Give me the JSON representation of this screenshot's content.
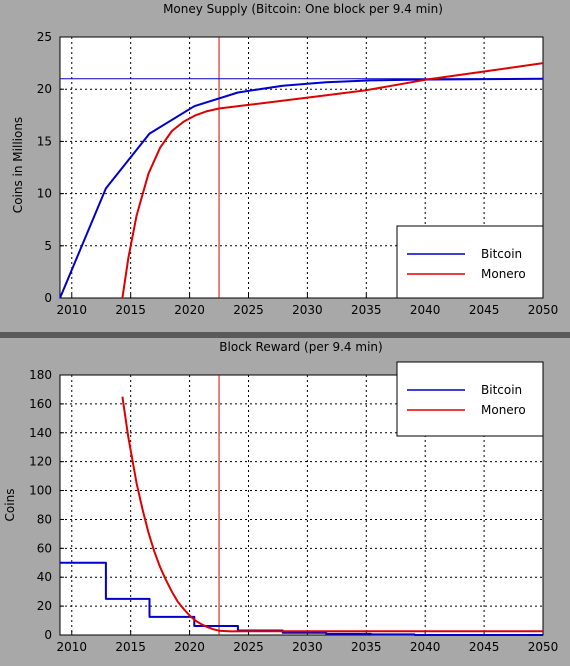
{
  "chart_data": [
    {
      "type": "line",
      "title": "Money Supply (Bitcoin: One block per 9.4 min)",
      "xlabel": "",
      "ylabel": "Coins in Millions",
      "xlim": [
        2009,
        2050
      ],
      "ylim": [
        0,
        25
      ],
      "x_ticks": [
        2010,
        2015,
        2020,
        2025,
        2030,
        2035,
        2040,
        2045,
        2050
      ],
      "y_ticks": [
        0,
        5,
        10,
        15,
        20,
        25
      ],
      "grid": true,
      "legend_position": "bottom-right",
      "vertical_marker_x": 2022.5,
      "horizontal_marker_y": 21,
      "series": [
        {
          "name": "Bitcoin",
          "color": "#0000cc",
          "x": [
            2009,
            2012.9,
            2016.6,
            2020.4,
            2024.1,
            2027.9,
            2031.6,
            2035.4,
            2039.1,
            2050
          ],
          "y": [
            0,
            10.5,
            15.75,
            18.375,
            19.6875,
            20.34,
            20.67,
            20.84,
            20.92,
            21.0
          ]
        },
        {
          "name": "Monero",
          "color": "#dd0000",
          "x": [
            2014.3,
            2014.8,
            2015.5,
            2016.5,
            2017.5,
            2018.5,
            2019.5,
            2020.5,
            2021.5,
            2022.5,
            2025,
            2030,
            2035,
            2040,
            2045,
            2050
          ],
          "y": [
            0,
            3.8,
            7.9,
            11.9,
            14.4,
            16.0,
            16.9,
            17.5,
            17.9,
            18.15,
            18.5,
            19.2,
            19.9,
            20.9,
            21.7,
            22.5
          ]
        }
      ]
    },
    {
      "type": "line",
      "title": "Block Reward (per 9.4 min)",
      "xlabel": "",
      "ylabel": "Coins",
      "xlim": [
        2009,
        2050
      ],
      "ylim": [
        0,
        180
      ],
      "x_ticks": [
        2010,
        2015,
        2020,
        2025,
        2030,
        2035,
        2040,
        2045,
        2050
      ],
      "y_ticks": [
        0,
        20,
        40,
        60,
        80,
        100,
        120,
        140,
        160,
        180
      ],
      "grid": true,
      "legend_position": "top-right",
      "vertical_marker_x": 2022.5,
      "series": [
        {
          "name": "Bitcoin",
          "color": "#0000cc",
          "step": true,
          "x": [
            2009,
            2012.9,
            2012.9,
            2016.6,
            2016.6,
            2020.4,
            2020.4,
            2024.1,
            2024.1,
            2027.9,
            2027.9,
            2031.6,
            2031.6,
            2035.4,
            2035.4,
            2039.1,
            2039.1,
            2050
          ],
          "y": [
            50,
            50,
            25,
            25,
            12.5,
            12.5,
            6.25,
            6.25,
            3.125,
            3.125,
            1.5625,
            1.5625,
            0.78,
            0.78,
            0.39,
            0.39,
            0,
            0
          ]
        },
        {
          "name": "Monero",
          "color": "#dd0000",
          "x": [
            2014.3,
            2014.8,
            2015.5,
            2016.0,
            2016.5,
            2017.0,
            2017.5,
            2018.0,
            2018.5,
            2019.0,
            2019.5,
            2020.0,
            2020.5,
            2021.0,
            2021.5,
            2022.0,
            2022.5,
            2023.5,
            2025,
            2030,
            2040,
            2050
          ],
          "y": [
            165,
            137,
            105,
            87,
            71,
            58,
            47,
            38,
            30,
            23,
            18,
            13.5,
            10,
            7.5,
            5.5,
            4,
            3,
            2.5,
            2.6,
            2.6,
            2.6,
            2.6
          ]
        }
      ]
    }
  ]
}
